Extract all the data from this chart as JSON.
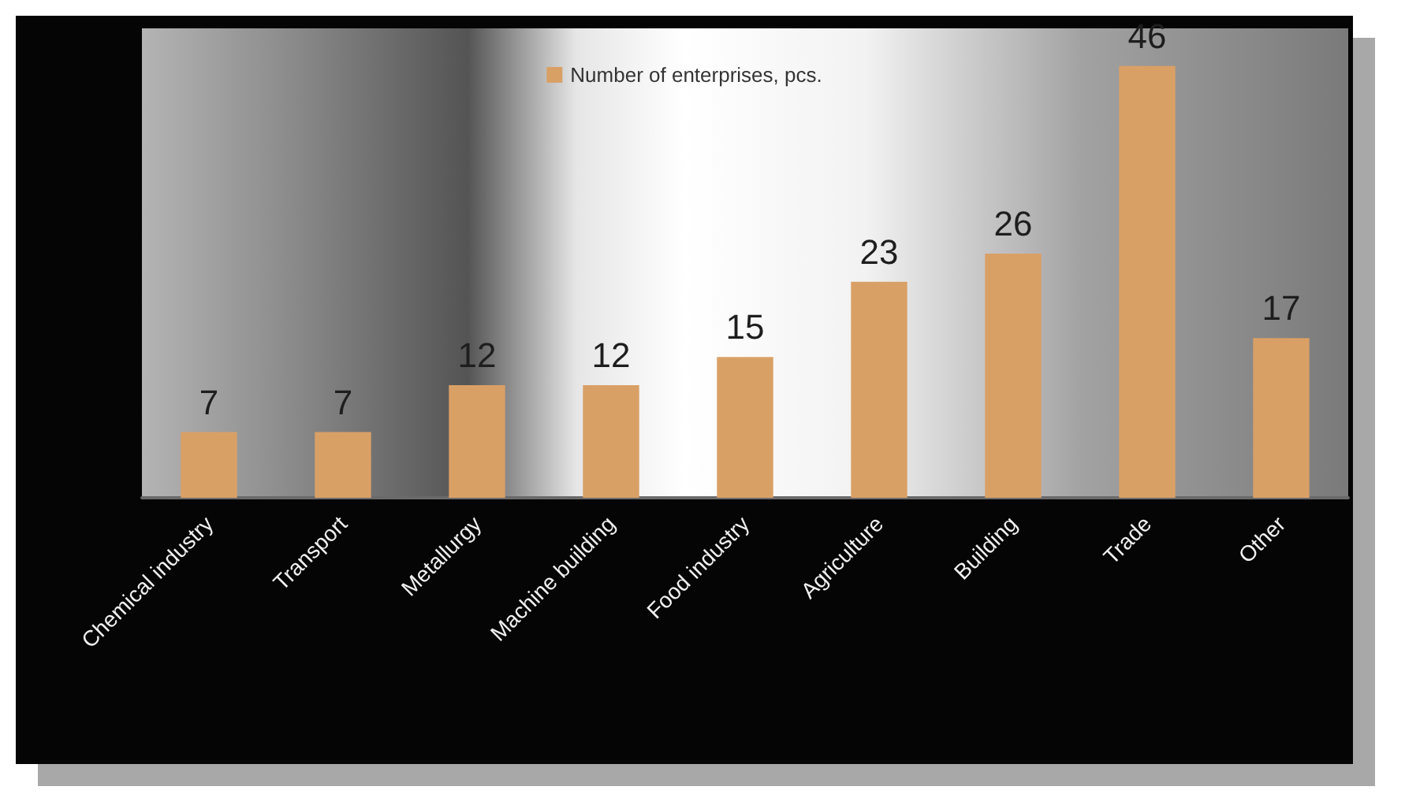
{
  "chart_data": {
    "type": "bar",
    "categories": [
      "Chemical industry",
      "Transport",
      "Metallurgy",
      "Machine building",
      "Food industry",
      "Agriculture",
      "Building",
      "Trade",
      "Other"
    ],
    "series": [
      {
        "name": "Number of enterprises, pcs.",
        "color": "#d9a066",
        "values": [
          7,
          7,
          12,
          12,
          15,
          23,
          26,
          46,
          17
        ]
      }
    ],
    "legend": "top",
    "data_labels": true
  }
}
